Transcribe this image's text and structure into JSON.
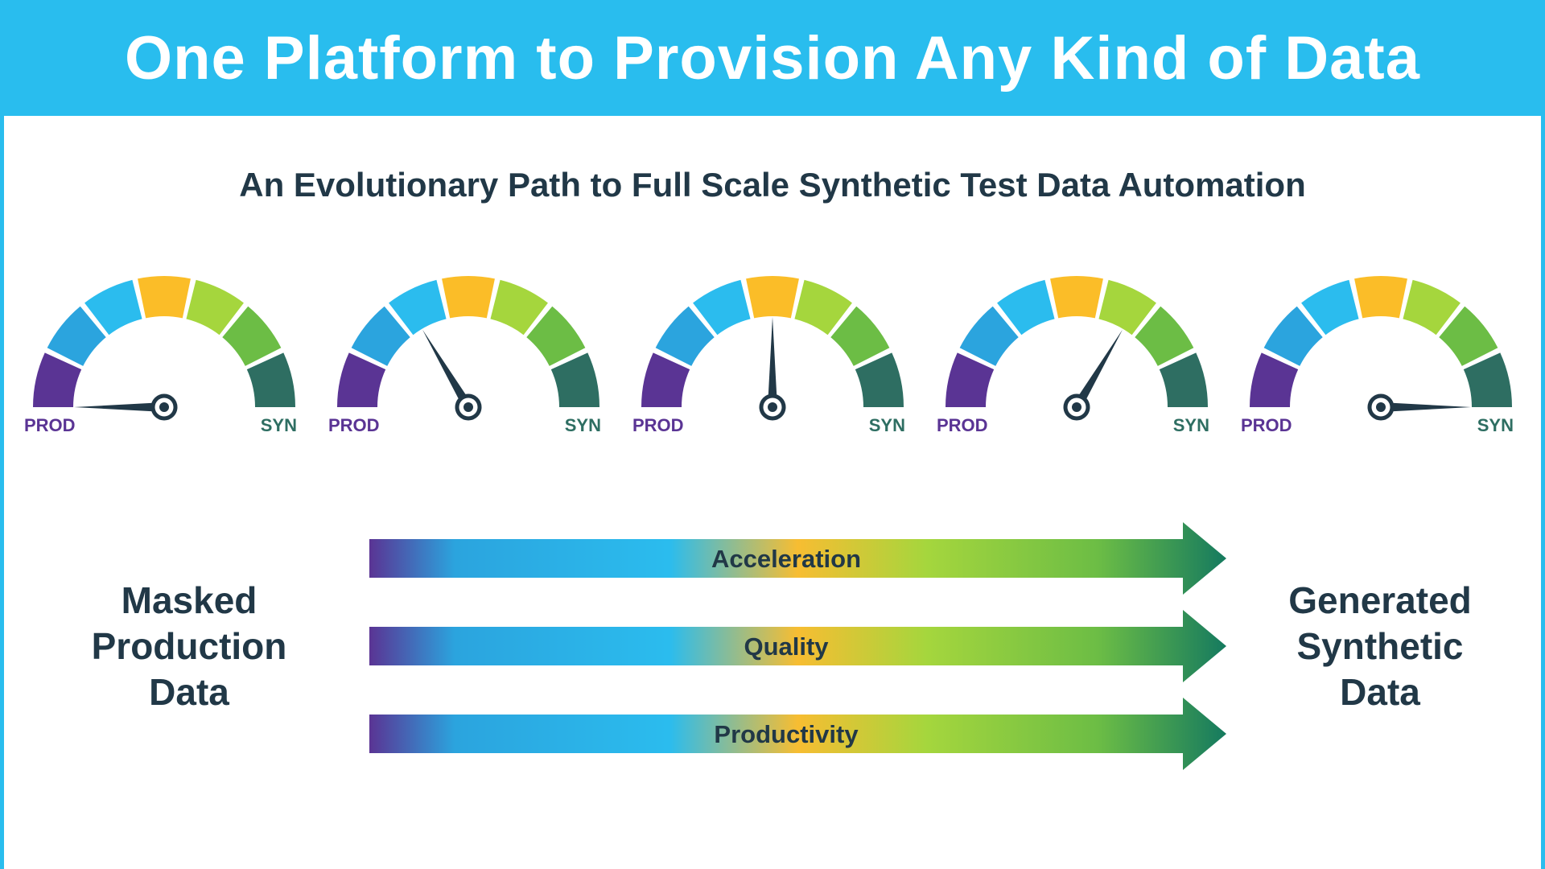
{
  "header": {
    "title": "One Platform to Provision Any Kind of Data"
  },
  "subtitle": "An Evolutionary Path to Full Scale Synthetic Test Data Automation",
  "gauge": {
    "left_label": "PROD",
    "right_label": "SYN",
    "segment_colors": [
      "#5a3494",
      "#2ba4de",
      "#2bbcee",
      "#fbbd28",
      "#a5d63d",
      "#6cbd45",
      "#2e6e62"
    ],
    "count": 5,
    "needle_levels": [
      0,
      0.33,
      0.5,
      0.67,
      1
    ]
  },
  "left_label": [
    "Masked",
    "Production",
    "Data"
  ],
  "right_label": [
    "Generated",
    "Synthetic",
    "Data"
  ],
  "arrows": [
    {
      "label": "Acceleration"
    },
    {
      "label": "Quality"
    },
    {
      "label": "Productivity"
    }
  ],
  "colors": {
    "header": "#29bdee",
    "footer": "#a5d63d",
    "text": "#213847"
  }
}
